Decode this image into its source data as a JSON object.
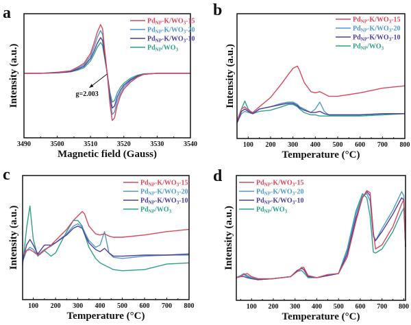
{
  "colors": {
    "PdNP-K/WO3-15": "#d9475a",
    "PdNP-K/WO3-20": "#4f9ac9",
    "PdNP-K/WO3-10": "#4d3c9c",
    "PdNP/WO3": "#2ea08a"
  },
  "legend_entries": [
    {
      "base": "Pd",
      "sub": "NP",
      "rest": "-K/WO",
      "sub2": "3",
      "tail": "-15",
      "key": "PdNP-K/WO3-15"
    },
    {
      "base": "Pd",
      "sub": "NP",
      "rest": "-K/WO",
      "sub2": "3",
      "tail": "-20",
      "key": "PdNP-K/WO3-20"
    },
    {
      "base": "Pd",
      "sub": "NP",
      "rest": "-K/WO",
      "sub2": "3",
      "tail": "-10",
      "key": "PdNP-K/WO3-10"
    },
    {
      "base": "Pd",
      "sub": "NP",
      "rest": "/WO",
      "sub2": "3",
      "tail": "",
      "key": "PdNP/WO3"
    }
  ],
  "chart_data": [
    {
      "panel": "a",
      "type": "line",
      "xlabel": "Magnetic field (Gauss)",
      "ylabel": "Intensity (a.u.)",
      "xlim": [
        3490,
        3540
      ],
      "ylim": [
        -1.1,
        1.0
      ],
      "xticks": [
        3490,
        3500,
        3510,
        3520,
        3530,
        3540
      ],
      "annotation": {
        "text": "g=2.003",
        "x": 3515,
        "y": 0
      },
      "legend": "top-right",
      "x": [
        3490,
        3495,
        3500,
        3504,
        3506,
        3508,
        3510,
        3511,
        3512,
        3513,
        3513.6,
        3514.2,
        3515,
        3515.8,
        3516.5,
        3517.2,
        3518,
        3519,
        3520,
        3522,
        3524,
        3526,
        3530,
        3535,
        3540
      ],
      "series": [
        {
          "name": "PdNP-K/WO3-15",
          "values": [
            0,
            0,
            0.02,
            0.05,
            0.12,
            0.2,
            0.4,
            0.6,
            0.82,
            0.98,
            0.9,
            0.5,
            0,
            -0.6,
            -0.95,
            -0.9,
            -0.65,
            -0.45,
            -0.32,
            -0.18,
            -0.08,
            -0.02,
            0,
            0,
            0
          ]
        },
        {
          "name": "PdNP-K/WO3-20",
          "values": [
            0,
            0,
            0.02,
            0.04,
            0.1,
            0.17,
            0.35,
            0.52,
            0.72,
            0.86,
            0.78,
            0.44,
            0,
            -0.52,
            -0.83,
            -0.78,
            -0.56,
            -0.4,
            -0.28,
            -0.15,
            -0.07,
            -0.02,
            0,
            0,
            0
          ]
        },
        {
          "name": "PdNP-K/WO3-10",
          "values": [
            0,
            0,
            0.01,
            0.03,
            0.08,
            0.14,
            0.3,
            0.44,
            0.6,
            0.72,
            0.66,
            0.38,
            0,
            -0.45,
            -0.7,
            -0.66,
            -0.48,
            -0.34,
            -0.24,
            -0.13,
            -0.06,
            -0.02,
            0,
            0,
            0
          ]
        },
        {
          "name": "PdNP/WO3",
          "values": [
            0,
            0,
            0.01,
            0.03,
            0.06,
            0.11,
            0.25,
            0.38,
            0.52,
            0.62,
            0.56,
            0.32,
            0,
            -0.38,
            -0.58,
            -0.55,
            -0.4,
            -0.28,
            -0.2,
            -0.1,
            -0.04,
            -0.01,
            0,
            0,
            0
          ]
        }
      ]
    },
    {
      "panel": "b",
      "type": "line",
      "xlabel": "Temperature (°C)",
      "ylabel": "Intensity (a.u.)",
      "xlim": [
        50,
        800
      ],
      "ylim": [
        0,
        1.0
      ],
      "xticks": [
        100,
        200,
        300,
        400,
        500,
        600,
        700,
        800
      ],
      "legend": "top-right",
      "x": [
        50,
        70,
        85,
        100,
        120,
        150,
        200,
        250,
        280,
        300,
        320,
        330,
        350,
        380,
        400,
        420,
        440,
        460,
        500,
        600,
        700,
        800
      ],
      "series": [
        {
          "name": "PdNP-K/WO3-15",
          "values": [
            0.1,
            0.2,
            0.22,
            0.19,
            0.17,
            0.22,
            0.3,
            0.42,
            0.5,
            0.55,
            0.57,
            0.53,
            0.43,
            0.35,
            0.34,
            0.35,
            0.33,
            0.31,
            0.31,
            0.34,
            0.38,
            0.4
          ]
        },
        {
          "name": "PdNP-K/WO3-20",
          "values": [
            0.08,
            0.16,
            0.18,
            0.17,
            0.16,
            0.2,
            0.22,
            0.25,
            0.26,
            0.26,
            0.24,
            0.22,
            0.2,
            0.17,
            0.2,
            0.26,
            0.18,
            0.15,
            0.15,
            0.15,
            0.16,
            0.16
          ]
        },
        {
          "name": "PdNP-K/WO3-10",
          "values": [
            0.08,
            0.18,
            0.2,
            0.18,
            0.16,
            0.2,
            0.22,
            0.24,
            0.25,
            0.25,
            0.23,
            0.21,
            0.19,
            0.17,
            0.17,
            0.18,
            0.16,
            0.15,
            0.15,
            0.15,
            0.16,
            0.16
          ]
        },
        {
          "name": "PdNP/WO3",
          "values": [
            0.08,
            0.2,
            0.27,
            0.2,
            0.16,
            0.18,
            0.19,
            0.22,
            0.24,
            0.24,
            0.22,
            0.2,
            0.17,
            0.15,
            0.15,
            0.14,
            0.14,
            0.14,
            0.14,
            0.14,
            0.15,
            0.16
          ]
        }
      ]
    },
    {
      "panel": "c",
      "type": "line",
      "xlabel": "Temperature (°C)",
      "ylabel": "Intensity (a.u.)",
      "xlim": [
        52,
        800
      ],
      "ylim": [
        0,
        1.0
      ],
      "xticks": [
        100,
        200,
        300,
        400,
        500,
        600,
        700,
        800
      ],
      "legend": "top-right",
      "x": [
        52,
        70,
        85,
        100,
        120,
        150,
        180,
        200,
        250,
        280,
        300,
        320,
        330,
        350,
        380,
        400,
        420,
        440,
        460,
        500,
        600,
        700,
        800
      ],
      "series": [
        {
          "name": "PdNP-K/WO3-15",
          "values": [
            0.3,
            0.35,
            0.36,
            0.34,
            0.31,
            0.35,
            0.4,
            0.44,
            0.54,
            0.62,
            0.66,
            0.7,
            0.68,
            0.57,
            0.5,
            0.49,
            0.5,
            0.48,
            0.47,
            0.47,
            0.49,
            0.52,
            0.54
          ]
        },
        {
          "name": "PdNP-K/WO3-20",
          "values": [
            0.25,
            0.35,
            0.38,
            0.36,
            0.31,
            0.36,
            0.39,
            0.42,
            0.5,
            0.57,
            0.59,
            0.56,
            0.52,
            0.44,
            0.38,
            0.4,
            0.52,
            0.33,
            0.29,
            0.28,
            0.3,
            0.31,
            0.31
          ]
        },
        {
          "name": "PdNP-K/WO3-10",
          "values": [
            0.25,
            0.4,
            0.45,
            0.4,
            0.32,
            0.4,
            0.4,
            0.42,
            0.49,
            0.55,
            0.57,
            0.55,
            0.5,
            0.42,
            0.36,
            0.34,
            0.37,
            0.33,
            0.3,
            0.3,
            0.31,
            0.31,
            0.32
          ]
        },
        {
          "name": "PdNP/WO3",
          "values": [
            0.22,
            0.55,
            0.75,
            0.45,
            0.3,
            0.35,
            0.3,
            0.33,
            0.52,
            0.62,
            0.62,
            0.57,
            0.5,
            0.38,
            0.28,
            0.24,
            0.22,
            0.2,
            0.18,
            0.17,
            0.18,
            0.23,
            0.24
          ]
        }
      ]
    },
    {
      "panel": "d",
      "type": "line",
      "xlabel": "Temperature (°C)",
      "ylabel": "Intensity (a.u.)",
      "xlim": [
        30,
        808
      ],
      "ylim": [
        0,
        1.0
      ],
      "xticks": [
        100,
        200,
        300,
        400,
        500,
        600,
        700,
        800
      ],
      "legend": "top-left",
      "x": [
        30,
        50,
        65,
        80,
        100,
        130,
        200,
        280,
        310,
        330,
        340,
        360,
        400,
        450,
        500,
        540,
        580,
        610,
        630,
        645,
        660,
        670,
        700,
        750,
        790,
        800,
        808
      ],
      "series": [
        {
          "name": "PdNP-K/WO3-15",
          "values": [
            0.1,
            0.11,
            0.13,
            0.14,
            0.11,
            0.09,
            0.09,
            0.11,
            0.16,
            0.2,
            0.2,
            0.12,
            0.1,
            0.13,
            0.14,
            0.3,
            0.65,
            0.88,
            0.95,
            0.93,
            0.55,
            0.38,
            0.42,
            0.6,
            0.82,
            0.86,
            0.4
          ]
        },
        {
          "name": "PdNP-K/WO3-20",
          "values": [
            0.1,
            0.12,
            0.14,
            0.12,
            0.1,
            0.08,
            0.09,
            0.11,
            0.16,
            0.19,
            0.18,
            0.11,
            0.1,
            0.12,
            0.14,
            0.36,
            0.72,
            0.9,
            0.92,
            0.85,
            0.5,
            0.46,
            0.58,
            0.76,
            0.94,
            0.9,
            0.4
          ]
        },
        {
          "name": "PdNP-K/WO3-10",
          "values": [
            0.1,
            0.11,
            0.11,
            0.1,
            0.09,
            0.08,
            0.09,
            0.11,
            0.17,
            0.19,
            0.18,
            0.11,
            0.1,
            0.12,
            0.14,
            0.33,
            0.68,
            0.88,
            0.94,
            0.9,
            0.52,
            0.46,
            0.55,
            0.72,
            0.88,
            0.86,
            0.4
          ]
        },
        {
          "name": "PdNP/WO3",
          "values": [
            0.1,
            0.12,
            0.13,
            0.11,
            0.1,
            0.08,
            0.09,
            0.11,
            0.16,
            0.17,
            0.15,
            0.1,
            0.1,
            0.12,
            0.14,
            0.38,
            0.75,
            0.92,
            0.88,
            0.7,
            0.35,
            0.34,
            0.38,
            0.55,
            0.74,
            0.78,
            0.4
          ]
        }
      ]
    }
  ],
  "panel_labels": [
    "a",
    "b",
    "c",
    "d"
  ]
}
